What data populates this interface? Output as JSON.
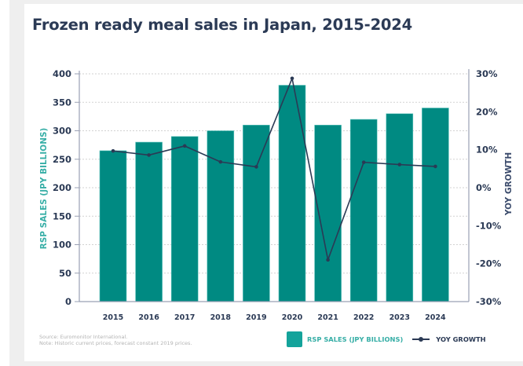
{
  "chart_data": {
    "type": "bar",
    "title": "Frozen ready meal sales in Japan, 2015-2024",
    "categories": [
      "2015",
      "2016",
      "2017",
      "2018",
      "2019",
      "2020",
      "2021",
      "2022",
      "2023",
      "2024"
    ],
    "series": [
      {
        "name": "RSP SALES (JPY BILLIONS)",
        "type": "bar",
        "axis": "left",
        "color": "#008a82",
        "values": [
          265,
          280,
          290,
          300,
          310,
          380,
          310,
          320,
          330,
          340
        ]
      },
      {
        "name": "YOY GROWTH",
        "type": "line",
        "axis": "right",
        "color": "#2b3a55",
        "unit": "%",
        "values": [
          9.7,
          8.6,
          11.0,
          6.8,
          5.5,
          28.8,
          -19.0,
          6.7,
          6.1,
          5.6
        ]
      }
    ],
    "xlabel": "",
    "ylabel": "RSP SALES (JPY BILLIONS)",
    "ylim": [
      0,
      400
    ],
    "yticks": [
      "0",
      "50",
      "100",
      "150",
      "200",
      "250",
      "300",
      "350",
      "400"
    ],
    "ytick_values": [
      0,
      50,
      100,
      150,
      200,
      250,
      300,
      350,
      400
    ],
    "y2label": "YOY GROWTH",
    "y2lim": [
      -30,
      30
    ],
    "y2ticks": [
      "-30%",
      "-20%",
      "-10%",
      "0%",
      "10%",
      "20%",
      "30%"
    ],
    "y2tick_values": [
      -30,
      -20,
      -10,
      0,
      10,
      20,
      30
    ],
    "grid": true,
    "legend_position": "bottom-right"
  },
  "legend": {
    "bar_label": "RSP SALES (JPY BILLIONS)",
    "line_label": "YOY GROWTH"
  },
  "footnote": {
    "source": "Source: Euromonitor International.",
    "note": "Note: Historic current prices, forecast constant 2019 prices."
  },
  "colors": {
    "bar": "#008a82",
    "line": "#2b3a55",
    "accent_text": "#36aea6",
    "title": "#2b3a55"
  }
}
